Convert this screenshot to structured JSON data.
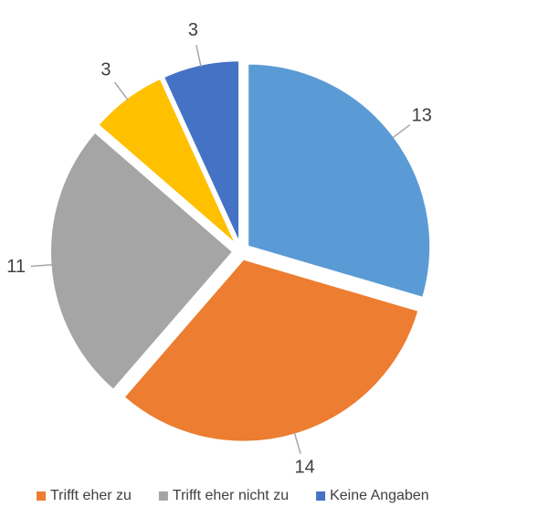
{
  "chart_data": {
    "type": "pie",
    "categories": [
      null,
      "Trifft eher zu",
      "Trifft eher nicht zu",
      null,
      "Keine Angaben"
    ],
    "values": [
      13,
      14,
      11,
      3,
      3
    ],
    "colors": [
      "#5b9bd5",
      "#ed7d31",
      "#a5a5a5",
      "#ffc000",
      "#4472c4"
    ],
    "legend": "bottom"
  }
}
